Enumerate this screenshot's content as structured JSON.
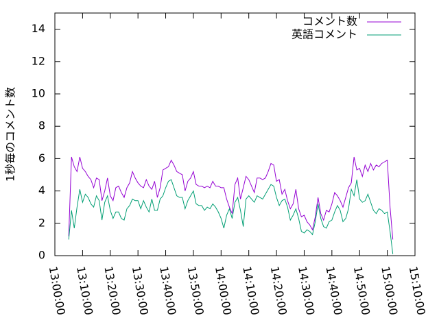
{
  "chart_data": {
    "type": "line",
    "ylabel": "1秒毎のコメント数",
    "x": [
      "13:05:00",
      "13:06:00",
      "13:07:00",
      "13:08:00",
      "13:09:00",
      "13:10:00",
      "13:11:00",
      "13:12:00",
      "13:13:00",
      "13:14:00",
      "13:15:00",
      "13:16:00",
      "13:17:00",
      "13:18:00",
      "13:19:00",
      "13:20:00",
      "13:21:00",
      "13:22:00",
      "13:23:00",
      "13:24:00",
      "13:25:00",
      "13:26:00",
      "13:27:00",
      "13:28:00",
      "13:29:00",
      "13:30:00",
      "13:31:00",
      "13:32:00",
      "13:33:00",
      "13:34:00",
      "13:35:00",
      "13:36:00",
      "13:37:00",
      "13:38:00",
      "13:39:00",
      "13:40:00",
      "13:41:00",
      "13:42:00",
      "13:43:00",
      "13:44:00",
      "13:45:00",
      "13:46:00",
      "13:47:00",
      "13:48:00",
      "13:49:00",
      "13:50:00",
      "13:51:00",
      "13:52:00",
      "13:53:00",
      "13:54:00",
      "13:55:00",
      "13:56:00",
      "13:57:00",
      "13:58:00",
      "13:59:00",
      "14:00:00",
      "14:01:00",
      "14:02:00",
      "14:03:00",
      "14:04:00",
      "14:05:00",
      "14:06:00",
      "14:07:00",
      "14:08:00",
      "14:09:00",
      "14:10:00",
      "14:11:00",
      "14:12:00",
      "14:13:00",
      "14:14:00",
      "14:15:00",
      "14:16:00",
      "14:17:00",
      "14:18:00",
      "14:19:00",
      "14:20:00",
      "14:21:00",
      "14:22:00",
      "14:23:00",
      "14:24:00",
      "14:25:00",
      "14:26:00",
      "14:27:00",
      "14:28:00",
      "14:29:00",
      "14:30:00",
      "14:31:00",
      "14:32:00",
      "14:33:00",
      "14:34:00",
      "14:35:00",
      "14:36:00",
      "14:37:00",
      "14:38:00",
      "14:39:00",
      "14:40:00",
      "14:41:00",
      "14:42:00",
      "14:43:00",
      "14:44:00",
      "14:45:00",
      "14:46:00",
      "14:47:00",
      "14:48:00",
      "14:49:00",
      "14:50:00",
      "14:51:00",
      "14:52:00",
      "14:53:00",
      "14:54:00",
      "14:55:00",
      "14:56:00",
      "14:57:00",
      "14:58:00",
      "14:59:00",
      "15:00:00",
      "15:01:00",
      "15:02:00"
    ],
    "series": [
      {
        "name": "コメント数",
        "color": "#9400d3",
        "values": [
          1.2,
          6.1,
          5.5,
          5.2,
          6.1,
          5.4,
          5.2,
          4.9,
          4.7,
          4.2,
          4.8,
          4.7,
          3.4,
          4.0,
          4.8,
          3.7,
          3.4,
          4.2,
          4.3,
          3.9,
          3.6,
          4.2,
          4.5,
          5.2,
          4.8,
          4.5,
          4.3,
          4.2,
          4.7,
          4.3,
          4.1,
          4.6,
          3.6,
          4.2,
          5.3,
          5.4,
          5.5,
          5.9,
          5.6,
          5.2,
          5.1,
          5.0,
          4.0,
          4.6,
          4.8,
          5.2,
          4.4,
          4.3,
          4.3,
          4.2,
          4.3,
          4.2,
          4.6,
          4.3,
          4.3,
          4.2,
          4.2,
          3.5,
          3.0,
          2.6,
          4.4,
          4.8,
          3.5,
          4.2,
          4.9,
          4.7,
          4.3,
          3.9,
          4.8,
          4.8,
          4.7,
          4.8,
          5.2,
          5.7,
          5.6,
          4.6,
          4.7,
          3.8,
          4.1,
          3.4,
          2.9,
          3.2,
          4.1,
          2.9,
          2.4,
          2.5,
          2.1,
          1.9,
          1.6,
          2.4,
          3.6,
          2.6,
          2.2,
          2.8,
          2.7,
          3.2,
          3.9,
          3.7,
          3.4,
          3.0,
          3.6,
          4.2,
          4.5,
          6.1,
          5.3,
          5.4,
          4.9,
          5.6,
          5.2,
          5.7,
          5.3,
          5.6,
          5.5,
          5.7,
          5.8,
          5.9,
          3.0,
          1.0
        ]
      },
      {
        "name": "英語コメント",
        "color": "#009e73",
        "values": [
          1.0,
          2.8,
          1.7,
          3.0,
          4.1,
          3.3,
          3.8,
          3.6,
          3.2,
          3.0,
          3.7,
          3.4,
          2.2,
          3.3,
          3.7,
          2.8,
          2.3,
          2.7,
          2.7,
          2.3,
          2.2,
          2.9,
          3.1,
          3.5,
          3.4,
          3.4,
          2.9,
          3.4,
          3.0,
          2.7,
          3.5,
          2.8,
          2.8,
          3.5,
          3.7,
          4.2,
          4.6,
          4.7,
          4.2,
          3.7,
          3.6,
          3.6,
          2.9,
          3.4,
          3.7,
          4.0,
          3.2,
          3.1,
          3.1,
          2.8,
          3.0,
          2.9,
          3.2,
          3.0,
          2.7,
          2.3,
          1.7,
          2.5,
          2.9,
          2.3,
          3.3,
          3.6,
          2.8,
          1.8,
          3.5,
          3.7,
          3.5,
          3.3,
          3.7,
          3.6,
          3.5,
          3.8,
          4.1,
          4.4,
          4.3,
          3.6,
          3.1,
          3.4,
          3.5,
          3.0,
          2.2,
          2.5,
          2.9,
          2.3,
          1.5,
          1.4,
          1.6,
          1.5,
          1.3,
          2.1,
          3.2,
          2.3,
          1.8,
          1.7,
          2.1,
          2.2,
          2.7,
          3.1,
          2.8,
          2.1,
          2.3,
          2.9,
          4.1,
          3.7,
          4.7,
          3.5,
          3.3,
          3.4,
          3.8,
          3.3,
          2.8,
          2.6,
          2.9,
          2.8,
          2.6,
          2.7,
          1.5,
          0.1
        ]
      }
    ],
    "xlim": [
      "13:00:00",
      "15:10:00"
    ],
    "xticks": [
      "13:00:00",
      "13:10:00",
      "13:20:00",
      "13:30:00",
      "13:40:00",
      "13:50:00",
      "14:00:00",
      "14:10:00",
      "14:20:00",
      "14:30:00",
      "14:40:00",
      "14:50:00",
      "15:00:00",
      "15:10:00"
    ],
    "ylim": [
      0,
      15
    ],
    "yticks": [
      0,
      2,
      4,
      6,
      8,
      10,
      12,
      14
    ],
    "legend": "top-right"
  }
}
